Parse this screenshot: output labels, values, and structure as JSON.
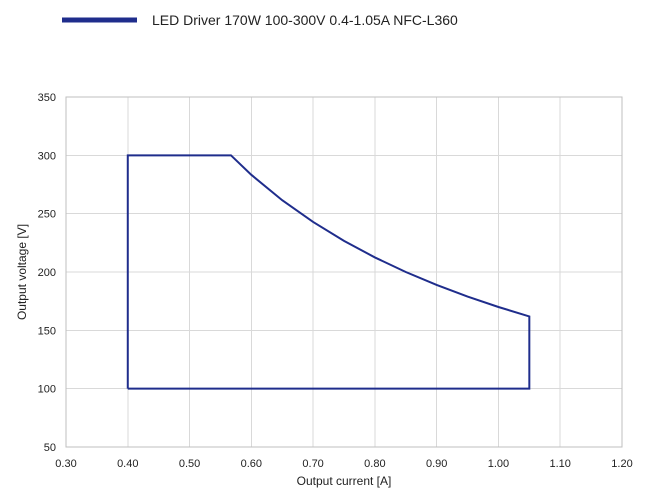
{
  "chart_data": {
    "type": "line",
    "title": "",
    "xlabel": "Output current [A]",
    "ylabel": "Output voltage [V]",
    "xlim": [
      0.3,
      1.2
    ],
    "ylim": [
      50,
      350
    ],
    "xticks": [
      "0.30",
      "0.40",
      "0.50",
      "0.60",
      "0.70",
      "0.80",
      "0.90",
      "1.00",
      "1.10",
      "1.20"
    ],
    "yticks": [
      "50",
      "100",
      "150",
      "200",
      "250",
      "300",
      "350"
    ],
    "grid": true,
    "legend_position": "top-left",
    "series": [
      {
        "name": "LED Driver 170W 100-300V 0.4-1.05A NFC-L360",
        "color": "#1f2d8c",
        "points": [
          [
            0.4,
            100
          ],
          [
            0.4,
            300
          ],
          [
            0.567,
            300
          ],
          [
            0.6,
            283.3
          ],
          [
            0.65,
            261.5
          ],
          [
            0.7,
            242.9
          ],
          [
            0.75,
            226.7
          ],
          [
            0.8,
            212.5
          ],
          [
            0.85,
            200.0
          ],
          [
            0.9,
            188.9
          ],
          [
            0.95,
            178.9
          ],
          [
            1.0,
            170.0
          ],
          [
            1.05,
            161.9
          ],
          [
            1.05,
            100
          ],
          [
            0.4,
            100
          ]
        ]
      }
    ]
  }
}
